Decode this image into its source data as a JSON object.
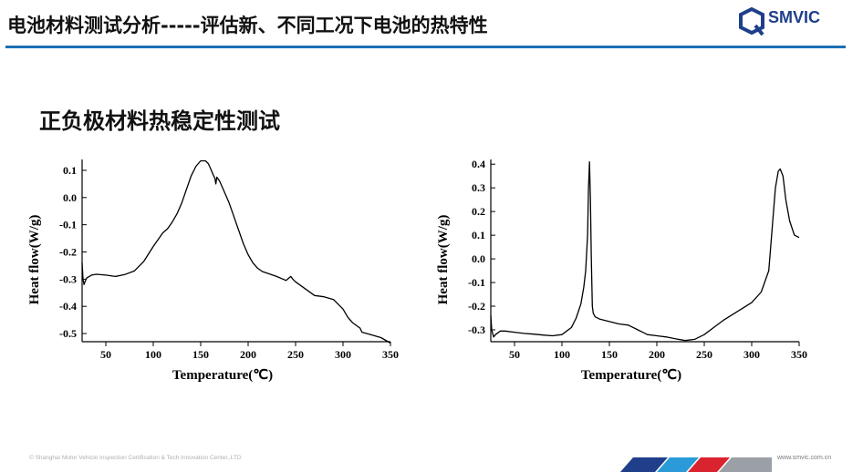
{
  "header": {
    "title": "电池材料测试分析-----评估新、不同工况下电池的热特性",
    "logo_text": "SMVIC",
    "accent_color": "#1a6fb5",
    "logo_color": "#1f3f8a"
  },
  "section": {
    "subtitle": "正负极材料热稳定性测试"
  },
  "footer": {
    "copyright": "© Shanghai Motor Vehicle Inspection Certification & Tech Innovation Center.,LTD",
    "website": "www.smvic.com.cn",
    "stripe_colors": [
      "#1f3f8a",
      "#2a9bd8",
      "#d9232e",
      "#9aa0a6"
    ]
  },
  "chart_data": [
    {
      "type": "line",
      "xlabel": "Temperature(℃)",
      "ylabel": "Heat flow(W/g)",
      "xlim": [
        25,
        350
      ],
      "ylim": [
        -0.53,
        0.14
      ],
      "xticks": [
        50,
        100,
        150,
        200,
        250,
        300,
        350
      ],
      "yticks": [
        0.1,
        0.0,
        -0.1,
        -0.2,
        -0.3,
        -0.4,
        -0.5
      ],
      "ytick_labels": [
        "0.1",
        "0.0",
        "-0.1",
        "-0.2",
        "-0.3",
        "-0.4",
        "-0.5"
      ],
      "grid": false,
      "series": [
        {
          "x": [
            25,
            26,
            27,
            28,
            30,
            35,
            40,
            50,
            60,
            70,
            80,
            90,
            100,
            110,
            115,
            120,
            125,
            130,
            135,
            140,
            145,
            150,
            155,
            158,
            160,
            163,
            165,
            166,
            167,
            170,
            175,
            180,
            185,
            190,
            195,
            200,
            205,
            210,
            215,
            220,
            230,
            240,
            245,
            247,
            250,
            260,
            270,
            280,
            290,
            300,
            305,
            310,
            318,
            320,
            325,
            330,
            340,
            345,
            350
          ],
          "y": [
            -0.24,
            -0.3,
            -0.32,
            -0.31,
            -0.295,
            -0.285,
            -0.282,
            -0.285,
            -0.29,
            -0.283,
            -0.27,
            -0.235,
            -0.18,
            -0.13,
            -0.115,
            -0.09,
            -0.06,
            -0.02,
            0.03,
            0.08,
            0.115,
            0.135,
            0.135,
            0.125,
            0.11,
            0.085,
            0.07,
            0.05,
            0.075,
            0.06,
            0.02,
            -0.02,
            -0.07,
            -0.12,
            -0.17,
            -0.21,
            -0.24,
            -0.26,
            -0.272,
            -0.278,
            -0.29,
            -0.305,
            -0.29,
            -0.3,
            -0.31,
            -0.335,
            -0.36,
            -0.365,
            -0.375,
            -0.41,
            -0.44,
            -0.46,
            -0.48,
            -0.495,
            -0.5,
            -0.505,
            -0.515,
            -0.525,
            -0.535
          ]
        }
      ]
    },
    {
      "type": "line",
      "xlabel": "Temperature(℃)",
      "ylabel": "Heat flow(W/g)",
      "xlim": [
        25,
        350
      ],
      "ylim": [
        -0.35,
        0.42
      ],
      "xticks": [
        50,
        100,
        150,
        200,
        250,
        300,
        350
      ],
      "yticks": [
        0.4,
        0.3,
        0.2,
        0.1,
        0.0,
        -0.1,
        -0.2,
        -0.3
      ],
      "ytick_labels": [
        "0.4",
        "0.3",
        "0.2",
        "0.1",
        "0.0",
        "-0.1",
        "-0.2",
        "-0.3"
      ],
      "grid": false,
      "series": [
        {
          "x": [
            25,
            26,
            28,
            30,
            35,
            40,
            50,
            60,
            70,
            80,
            90,
            100,
            110,
            115,
            120,
            123,
            125,
            127,
            128,
            129,
            130,
            131,
            132,
            133,
            135,
            140,
            150,
            160,
            170,
            180,
            185,
            190,
            200,
            210,
            220,
            230,
            240,
            250,
            260,
            270,
            280,
            290,
            300,
            310,
            318,
            320,
            323,
            325,
            328,
            330,
            333,
            336,
            340,
            345,
            350
          ],
          "y": [
            -0.24,
            -0.3,
            -0.33,
            -0.32,
            -0.305,
            -0.305,
            -0.31,
            -0.315,
            -0.318,
            -0.322,
            -0.325,
            -0.32,
            -0.29,
            -0.25,
            -0.19,
            -0.12,
            -0.05,
            0.1,
            0.3,
            0.41,
            0.25,
            0.0,
            -0.2,
            -0.23,
            -0.245,
            -0.255,
            -0.265,
            -0.275,
            -0.28,
            -0.3,
            -0.31,
            -0.32,
            -0.325,
            -0.33,
            -0.338,
            -0.345,
            -0.34,
            -0.32,
            -0.29,
            -0.26,
            -0.235,
            -0.21,
            -0.185,
            -0.14,
            -0.05,
            0.05,
            0.2,
            0.3,
            0.37,
            0.38,
            0.35,
            0.25,
            0.16,
            0.1,
            0.09
          ]
        }
      ]
    }
  ]
}
